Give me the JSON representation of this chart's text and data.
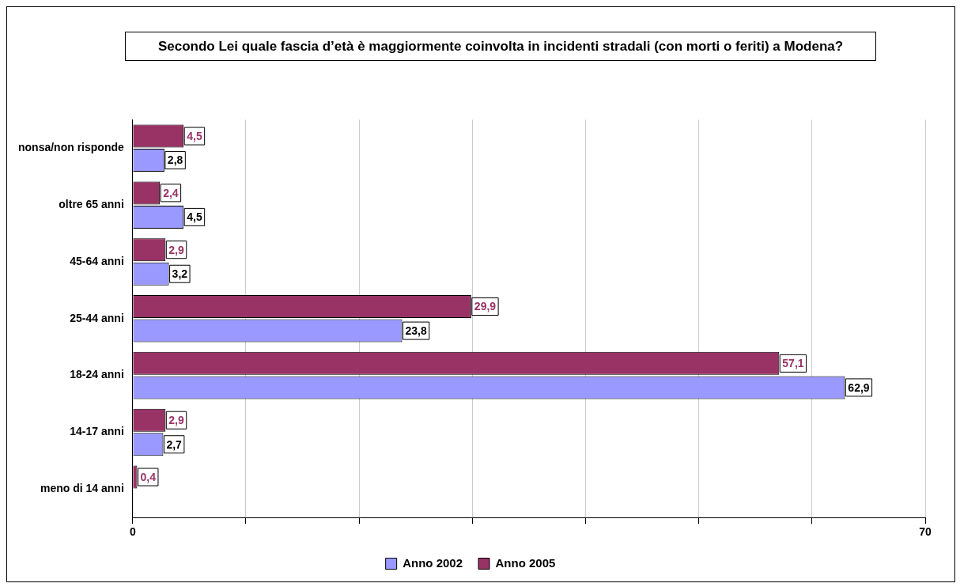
{
  "chart_data": {
    "type": "bar",
    "orientation": "horizontal",
    "title": "Secondo Lei quale fascia d’età è maggiormente coinvolta in incidenti stradali (con morti o feriti) a Modena?",
    "categories": [
      "nonsa/non risponde",
      "oltre 65 anni",
      "45-64 anni",
      "25-44 anni",
      "18-24 anni",
      "14-17 anni",
      "meno di 14 anni"
    ],
    "series": [
      {
        "name": "Anno 2002",
        "color": "#9999ff",
        "values": [
          2.8,
          4.5,
          3.2,
          23.8,
          62.9,
          2.7,
          null
        ],
        "value_labels": [
          "2,8",
          "4,5",
          "3,2",
          "23,8",
          "62,9",
          "2,7",
          null
        ]
      },
      {
        "name": "Anno 2005",
        "color": "#993366",
        "values": [
          4.5,
          2.4,
          2.9,
          29.9,
          57.1,
          2.9,
          0.4
        ],
        "value_labels": [
          "4,5",
          "2,4",
          "2,9",
          "29,9",
          "57,1",
          "2,9",
          "0,4"
        ]
      }
    ],
    "xlim": [
      0,
      70
    ],
    "xticks": [
      0,
      {
        "value": 10,
        "label": null
      },
      {
        "value": 20,
        "label": null
      },
      {
        "value": 30,
        "label": null
      },
      {
        "value": 40,
        "label": null
      },
      {
        "value": 50,
        "label": null
      },
      {
        "value": 60,
        "label": null
      },
      70
    ],
    "grid": "x",
    "legend": "bottom"
  }
}
